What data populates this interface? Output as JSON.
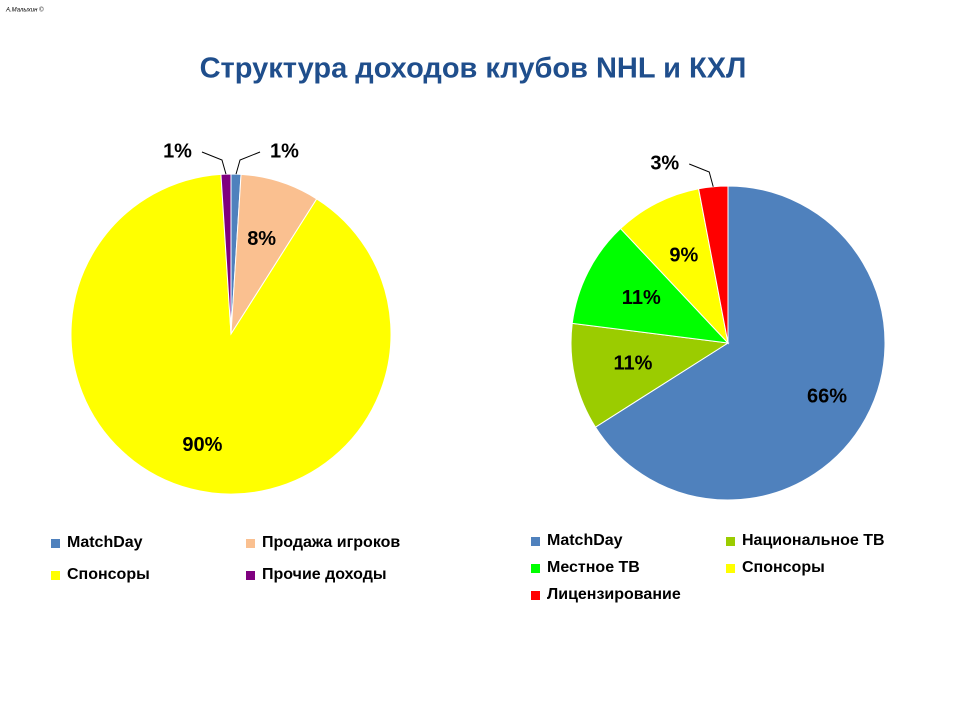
{
  "title": "Структура доходов клубов NHL и КХЛ",
  "credit": "А.Малыхин ©",
  "chart_data": [
    {
      "type": "pie",
      "categories": [
        "MatchDay",
        "Продажа игроков",
        "Спонсоры",
        "Прочие доходы"
      ],
      "values": [
        1,
        8,
        90,
        1
      ],
      "value_labels": [
        "1%",
        "8%",
        "90%",
        "1%"
      ],
      "colors": [
        "#4f81bd",
        "#fac090",
        "#ffff00",
        "#7f007f"
      ]
    },
    {
      "type": "pie",
      "categories": [
        "MatchDay",
        "Национальное ТВ",
        "Местное ТВ",
        "Спонсоры",
        "Лицензирование"
      ],
      "values": [
        66,
        11,
        11,
        9,
        3
      ],
      "value_labels": [
        "66%",
        "11%",
        "11%",
        "9%",
        "3%"
      ],
      "colors": [
        "#4f81bd",
        "#9bcc00",
        "#00ff00",
        "#ffff00",
        "#ff0000"
      ]
    }
  ]
}
